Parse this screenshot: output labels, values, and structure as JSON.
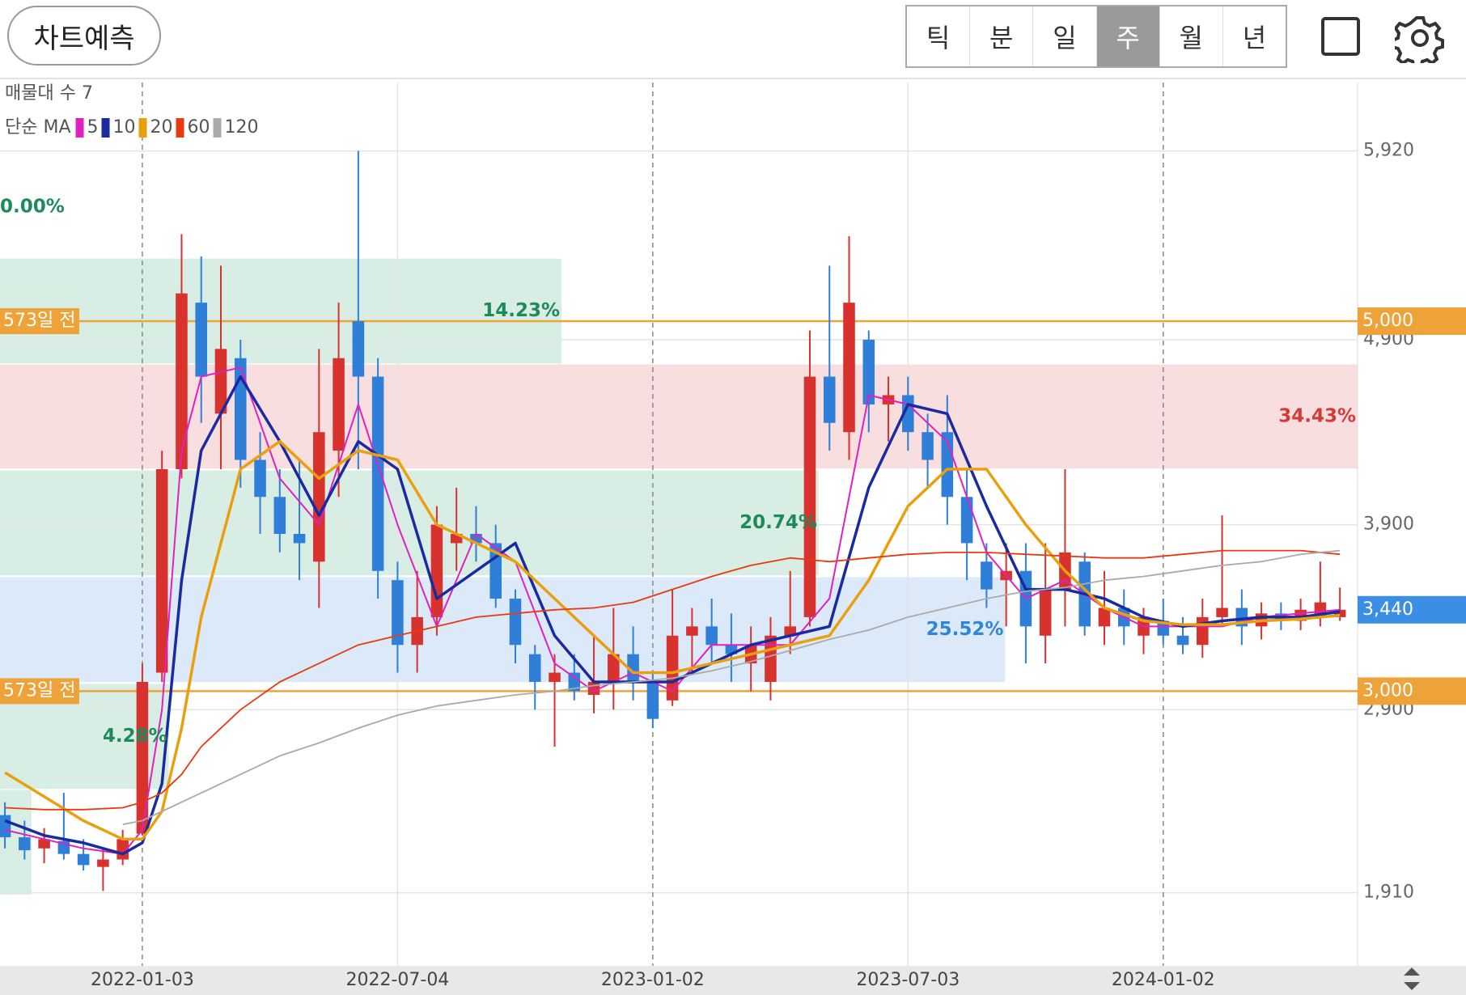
{
  "header": {
    "button": "차트예측",
    "tabs": [
      "틱",
      "분",
      "일",
      "주",
      "월",
      "년"
    ],
    "selected_tab": 3
  },
  "chart_data": {
    "type": "candlestick",
    "volume_profile_label": "매물대 수 7",
    "legend_title": "단순 MA",
    "up_color": "#d7322e",
    "down_color": "#2f7fd8",
    "xlim": [
      -0.5,
      137.8
    ],
    "ylim": [
      1515,
      6290
    ],
    "xticks": [
      {
        "value": 14,
        "label": "2022-01-03"
      },
      {
        "value": 40,
        "label": "2022-07-04"
      },
      {
        "value": 66,
        "label": "2023-01-02"
      },
      {
        "value": 92,
        "label": "2023-07-03"
      },
      {
        "value": 118,
        "label": "2024-01-02"
      }
    ],
    "yticks": [
      {
        "value": 1910,
        "label": "1,910"
      },
      {
        "value": 2900,
        "label": "2,900"
      },
      {
        "value": 3900,
        "label": "3,900"
      },
      {
        "value": 4900,
        "label": "4,900"
      },
      {
        "value": 5920,
        "label": "5,920"
      }
    ],
    "grid": true,
    "candles": {
      "x": [
        0,
        2,
        4,
        6,
        8,
        10,
        12,
        14,
        16,
        18,
        20,
        22,
        24,
        26,
        28,
        30,
        32,
        34,
        36,
        38,
        40,
        42,
        44,
        46,
        48,
        50,
        52,
        54,
        56,
        58,
        60,
        62,
        64,
        66,
        68,
        70,
        72,
        74,
        76,
        78,
        80,
        82,
        84,
        86,
        88,
        90,
        92,
        94,
        96,
        98,
        100,
        102,
        104,
        106,
        108,
        110,
        112,
        114,
        116,
        118,
        120,
        122,
        124,
        126,
        128,
        130,
        132,
        134,
        136
      ],
      "open": [
        2330,
        2210,
        2150,
        2190,
        2120,
        2050,
        2090,
        2230,
        3100,
        4200,
        5100,
        4500,
        4800,
        4250,
        4050,
        3850,
        3700,
        4300,
        5000,
        4700,
        3600,
        3250,
        3400,
        3800,
        3850,
        3800,
        3500,
        3200,
        3050,
        3100,
        2980,
        3050,
        3200,
        3050,
        2950,
        3300,
        3350,
        3250,
        3150,
        3050,
        3300,
        3400,
        4700,
        4400,
        4900,
        4550,
        4600,
        4400,
        4400,
        4050,
        3700,
        3600,
        3650,
        3300,
        3550,
        3700,
        3350,
        3450,
        3300,
        3380,
        3300,
        3250,
        3400,
        3450,
        3350,
        3420,
        3380,
        3400,
        3400
      ],
      "high": [
        2400,
        2300,
        2260,
        2450,
        2200,
        2150,
        2250,
        3150,
        4300,
        5470,
        5350,
        5300,
        4900,
        4400,
        4200,
        4250,
        4850,
        5100,
        5920,
        4800,
        3700,
        3650,
        4000,
        4100,
        4000,
        3900,
        3550,
        3250,
        3200,
        3200,
        3300,
        3450,
        3350,
        3100,
        3550,
        3450,
        3500,
        3420,
        3350,
        3400,
        3650,
        4950,
        5300,
        5460,
        4950,
        4700,
        4700,
        4500,
        4600,
        4200,
        3800,
        3800,
        3800,
        3800,
        4200,
        3750,
        3650,
        3550,
        3450,
        3500,
        3400,
        3500,
        3950,
        3550,
        3480,
        3480,
        3500,
        3700,
        3560
      ],
      "low": [
        2150,
        2090,
        2070,
        2090,
        2030,
        1920,
        2060,
        2220,
        3050,
        4150,
        4450,
        4200,
        4100,
        3850,
        3750,
        3600,
        3450,
        4050,
        4200,
        3500,
        3100,
        3100,
        3300,
        3650,
        3700,
        3450,
        3150,
        2900,
        2700,
        2950,
        2880,
        2900,
        2950,
        2800,
        2920,
        3100,
        3150,
        3050,
        3000,
        2950,
        3200,
        3350,
        4300,
        4250,
        4400,
        4350,
        4300,
        4100,
        3900,
        3600,
        3450,
        3350,
        3150,
        3150,
        3350,
        3300,
        3250,
        3250,
        3200,
        3250,
        3200,
        3180,
        3350,
        3250,
        3280,
        3330,
        3330,
        3350,
        3380
      ],
      "close": [
        2210,
        2140,
        2200,
        2120,
        2060,
        2090,
        2200,
        3050,
        4200,
        5150,
        4700,
        4850,
        4250,
        4050,
        3850,
        3800,
        4400,
        4800,
        4700,
        3650,
        3250,
        3400,
        3900,
        3850,
        3800,
        3500,
        3250,
        3050,
        3100,
        3000,
        3050,
        3200,
        3050,
        2850,
        3300,
        3350,
        3250,
        3200,
        3250,
        3300,
        3350,
        4700,
        4450,
        5100,
        4550,
        4600,
        4400,
        4250,
        4050,
        3800,
        3550,
        3650,
        3350,
        3550,
        3750,
        3350,
        3450,
        3350,
        3400,
        3300,
        3250,
        3400,
        3450,
        3350,
        3420,
        3380,
        3440,
        3480,
        3440
      ]
    },
    "series": [
      {
        "name": "5",
        "color": "#e020c0",
        "x": [
          0,
          4,
          8,
          12,
          14,
          16,
          18,
          20,
          24,
          28,
          32,
          36,
          40,
          44,
          48,
          52,
          56,
          60,
          64,
          68,
          72,
          76,
          80,
          84,
          88,
          92,
          96,
          100,
          104,
          108,
          112,
          116,
          120,
          124,
          128,
          132,
          136
        ],
        "values": [
          2250,
          2200,
          2150,
          2120,
          2250,
          2900,
          4300,
          4700,
          4750,
          4150,
          3900,
          4550,
          3900,
          3350,
          3850,
          3700,
          3150,
          3000,
          3100,
          3000,
          3250,
          3250,
          3250,
          3500,
          4600,
          4550,
          4350,
          3750,
          3500,
          3600,
          3450,
          3350,
          3350,
          3350,
          3400,
          3420,
          3440
        ]
      },
      {
        "name": "10",
        "color": "#1a2aa0",
        "x": [
          0,
          4,
          8,
          12,
          14,
          16,
          18,
          20,
          24,
          28,
          32,
          36,
          40,
          44,
          48,
          52,
          56,
          60,
          64,
          68,
          72,
          76,
          80,
          84,
          88,
          92,
          96,
          100,
          104,
          108,
          112,
          116,
          120,
          124,
          128,
          132,
          136
        ],
        "values": [
          2300,
          2220,
          2180,
          2120,
          2180,
          2500,
          3600,
          4300,
          4700,
          4350,
          3950,
          4350,
          4200,
          3500,
          3650,
          3800,
          3300,
          3050,
          3050,
          3050,
          3150,
          3250,
          3300,
          3350,
          4100,
          4550,
          4500,
          4000,
          3550,
          3550,
          3500,
          3400,
          3350,
          3380,
          3400,
          3400,
          3430
        ]
      },
      {
        "name": "20",
        "color": "#e8a010",
        "x": [
          0,
          4,
          8,
          12,
          14,
          16,
          18,
          20,
          24,
          28,
          32,
          36,
          40,
          44,
          48,
          52,
          56,
          60,
          64,
          68,
          72,
          76,
          80,
          84,
          88,
          92,
          96,
          100,
          104,
          108,
          112,
          116,
          120,
          124,
          128,
          132,
          136
        ],
        "values": [
          2560,
          2430,
          2300,
          2200,
          2200,
          2350,
          2800,
          3400,
          4200,
          4350,
          4150,
          4300,
          4250,
          3900,
          3800,
          3700,
          3500,
          3300,
          3100,
          3100,
          3150,
          3200,
          3250,
          3300,
          3600,
          4000,
          4200,
          4200,
          3900,
          3650,
          3450,
          3380,
          3360,
          3360,
          3380,
          3390,
          3410
        ]
      },
      {
        "name": "60",
        "color": "#e83a10",
        "x": [
          0,
          4,
          8,
          12,
          14,
          16,
          18,
          20,
          24,
          28,
          32,
          36,
          40,
          44,
          48,
          52,
          56,
          60,
          64,
          68,
          72,
          76,
          80,
          84,
          88,
          92,
          96,
          100,
          104,
          108,
          112,
          116,
          120,
          124,
          128,
          132,
          136
        ],
        "values": [
          2370,
          2360,
          2360,
          2370,
          2400,
          2450,
          2550,
          2700,
          2900,
          3050,
          3150,
          3250,
          3300,
          3350,
          3400,
          3420,
          3440,
          3450,
          3480,
          3550,
          3620,
          3680,
          3720,
          3700,
          3720,
          3740,
          3750,
          3750,
          3740,
          3730,
          3720,
          3720,
          3740,
          3760,
          3760,
          3760,
          3740
        ]
      },
      {
        "name": "120",
        "color": "#aaaaaa",
        "x": [
          0,
          4,
          8,
          12,
          14,
          16,
          18,
          20,
          24,
          28,
          32,
          36,
          40,
          44,
          48,
          52,
          56,
          60,
          64,
          68,
          72,
          76,
          80,
          84,
          88,
          92,
          96,
          100,
          104,
          108,
          112,
          116,
          120,
          124,
          128,
          132,
          136
        ],
        "values": [
          null,
          null,
          null,
          2280,
          2300,
          2350,
          2400,
          2450,
          2550,
          2650,
          2720,
          2800,
          2870,
          2920,
          2950,
          2980,
          3000,
          3030,
          3050,
          3070,
          3110,
          3160,
          3220,
          3280,
          3330,
          3400,
          3450,
          3500,
          3540,
          3560,
          3600,
          3620,
          3650,
          3680,
          3700,
          3740,
          3760
        ]
      }
    ],
    "zones": [
      {
        "x": [
          -0.5,
          56.7
        ],
        "y": [
          4771,
          5338
        ],
        "label": "14.23%",
        "color": "#d8eee4",
        "label_color": "#1e8a5a"
      },
      {
        "x": [
          -0.5,
          137.8
        ],
        "y": [
          4203,
          4766
        ],
        "label": "34.43%",
        "color": "#f8dede",
        "label_color": "#d33a3a"
      },
      {
        "x": [
          -0.5,
          82.9
        ],
        "y": [
          3626,
          4193
        ],
        "label": "20.74%",
        "color": "#d8eee4",
        "label_color": "#1e8a5a"
      },
      {
        "x": [
          -0.5,
          101.9
        ],
        "y": [
          3049,
          3616
        ],
        "label": "25.52%",
        "color": "#dce9f8",
        "label_color": "#2f86d6"
      },
      {
        "x": [
          -0.5,
          16.7
        ],
        "y": [
          2472,
          3039
        ],
        "label": "4.28%",
        "color": "#d8eee4",
        "label_color": "#1e8a5a"
      },
      {
        "x": [
          -0.5,
          2.7
        ],
        "y": [
          1900,
          2467
        ],
        "color": "#d8eee4"
      }
    ],
    "annotations": [
      {
        "text": "0.00%",
        "y": 5616,
        "color": "#1e8a5a"
      }
    ],
    "levels": [
      {
        "value": 5000,
        "label": "5,000",
        "marker": "573일 전",
        "color": "#eea23a"
      },
      {
        "value": 3000,
        "label": "3,000",
        "marker": "573일 전",
        "color": "#eea23a"
      }
    ],
    "current_price": {
      "value": 3440,
      "label": "3,440",
      "color": "#3a8ee6"
    }
  }
}
